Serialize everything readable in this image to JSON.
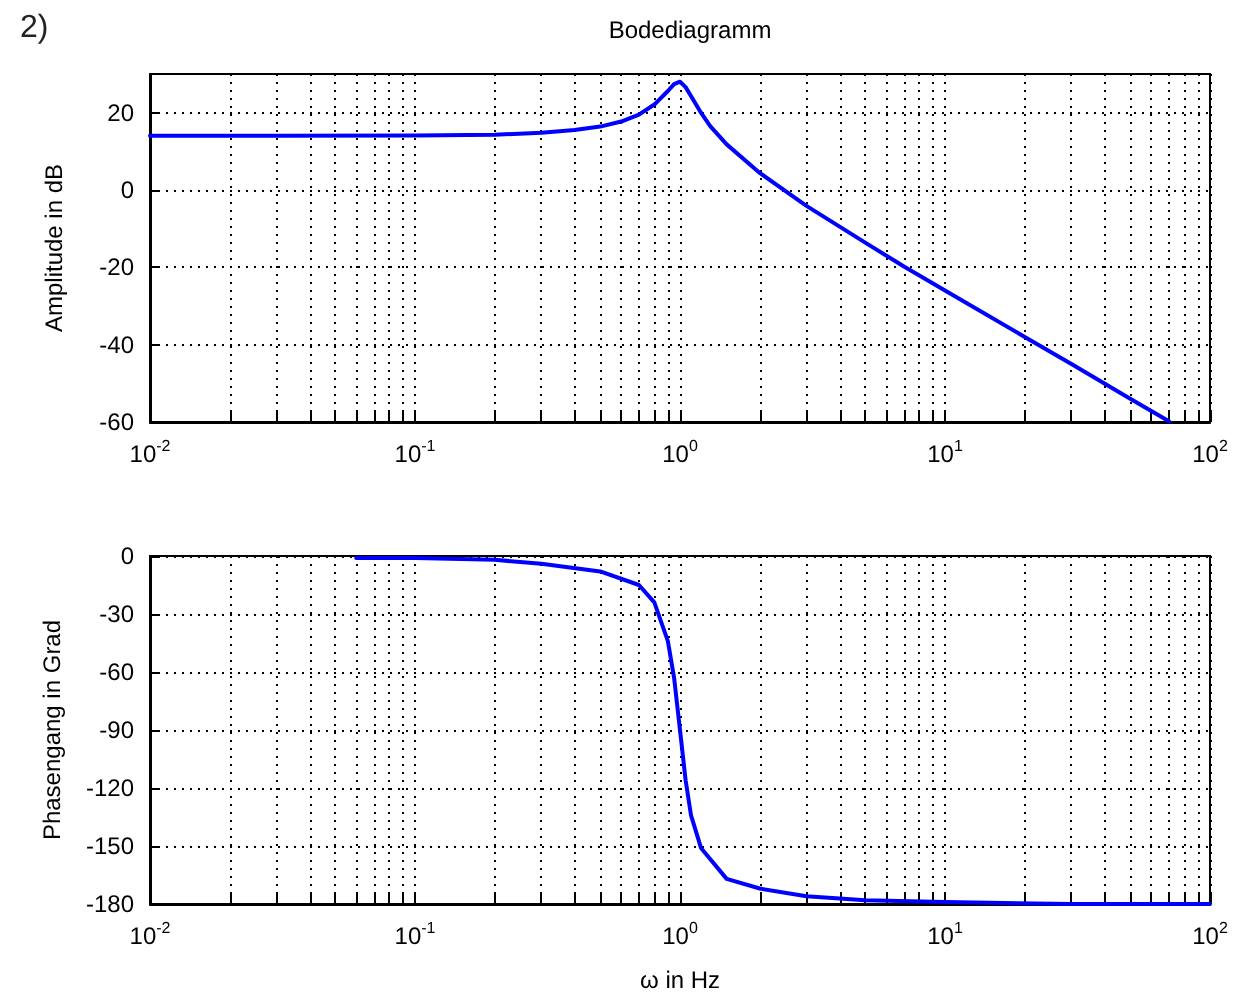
{
  "chart_data": [
    {
      "type": "line",
      "title": "Bodediagramm",
      "ylabel": "Amplitude in dB",
      "annotations": [
        "2)"
      ],
      "x": [
        0.01,
        0.03,
        0.1,
        0.2,
        0.3,
        0.4,
        0.5,
        0.6,
        0.7,
        0.8,
        0.9,
        0.95,
        1,
        1.05,
        1.1,
        1.2,
        1.3,
        1.5,
        2,
        3,
        5,
        7,
        10,
        20,
        30,
        50,
        70
      ],
      "series": [
        {
          "color": "#0000ff",
          "values": [
            14,
            14,
            14.1,
            14.3,
            14.8,
            15.5,
            16.4,
            17.7,
            19.5,
            22.1,
            25.6,
            27.4,
            28,
            26.6,
            24.3,
            20,
            16.5,
            11.8,
            4.4,
            -4.1,
            -13.6,
            -19.8,
            -26,
            -38,
            -45,
            -54,
            -59.8
          ]
        }
      ],
      "xlim": [
        0.01,
        100
      ],
      "ylim": [
        -60,
        30
      ],
      "xticks": [
        {
          "value": 0.01,
          "label": "10$^{-2}$"
        },
        {
          "value": 0.1,
          "label": "10$^{-1}$"
        },
        {
          "value": 1,
          "label": "10$^{0}$"
        },
        {
          "value": 10,
          "label": "10$^{1}$"
        },
        {
          "value": 100,
          "label": "10$^{2}$"
        }
      ],
      "yticks": [
        -60,
        -40,
        -20,
        0,
        20
      ],
      "log": "x",
      "grid": true,
      "marker": "none",
      "line_style": "solid"
    },
    {
      "type": "line",
      "xlabel": "ω in Hz",
      "ylabel": "Phasengang in Grad",
      "x": [
        0.06,
        0.1,
        0.2,
        0.3,
        0.5,
        0.7,
        0.8,
        0.9,
        0.95,
        1,
        1.05,
        1.1,
        1.2,
        1.5,
        2,
        3,
        5,
        10,
        30,
        100
      ],
      "series": [
        {
          "color": "#0000ff",
          "values": [
            -1,
            -1,
            -2,
            -4,
            -8,
            -15,
            -24,
            -44,
            -63,
            -90,
            -116,
            -134,
            -151,
            -167,
            -172,
            -176,
            -178,
            -179,
            -180,
            -180
          ]
        }
      ],
      "xlim": [
        0.01,
        100
      ],
      "ylim": [
        -180,
        0
      ],
      "xticks": [
        {
          "value": 0.01,
          "label": "10$^{-2}$"
        },
        {
          "value": 0.1,
          "label": "10$^{-1}$"
        },
        {
          "value": 1,
          "label": "10$^{0}$"
        },
        {
          "value": 10,
          "label": "10$^{1}$"
        },
        {
          "value": 100,
          "label": "10$^{2}$"
        }
      ],
      "yticks": [
        -180,
        -150,
        -120,
        -90,
        -60,
        -30,
        0
      ],
      "log": "x",
      "grid": true,
      "marker": "none",
      "line_style": "solid"
    }
  ]
}
